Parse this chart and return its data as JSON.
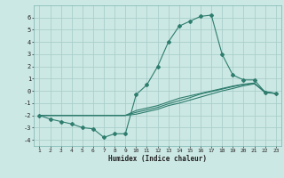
{
  "xlabel": "Humidex (Indice chaleur)",
  "bg_color": "#cce8e4",
  "grid_color": "#aacfcb",
  "line_color": "#2e7d6e",
  "x_values": [
    1,
    2,
    3,
    4,
    5,
    6,
    7,
    8,
    9,
    10,
    11,
    12,
    13,
    14,
    15,
    16,
    17,
    18,
    19,
    20,
    21,
    22,
    23
  ],
  "line1": [
    -2.0,
    -2.3,
    -2.5,
    -2.7,
    -3.0,
    -3.1,
    -3.8,
    -3.5,
    -3.5,
    -0.3,
    0.5,
    2.0,
    4.0,
    5.3,
    5.7,
    6.1,
    6.2,
    3.0,
    1.3,
    0.9,
    0.9,
    -0.1,
    -0.2
  ],
  "line2": [
    -2.0,
    -2.0,
    -2.0,
    -2.0,
    -2.0,
    -2.0,
    -2.0,
    -2.0,
    -2.0,
    -1.6,
    -1.4,
    -1.2,
    -0.9,
    -0.6,
    -0.4,
    -0.2,
    0.0,
    0.2,
    0.4,
    0.55,
    0.65,
    -0.15,
    -0.2
  ],
  "line3": [
    -2.0,
    -2.0,
    -2.0,
    -2.0,
    -2.0,
    -2.0,
    -2.0,
    -2.0,
    -2.0,
    -1.75,
    -1.55,
    -1.35,
    -1.05,
    -0.8,
    -0.55,
    -0.25,
    -0.05,
    0.15,
    0.35,
    0.52,
    0.62,
    -0.1,
    -0.2
  ],
  "line4": [
    -2.0,
    -2.0,
    -2.0,
    -2.0,
    -2.0,
    -2.0,
    -2.0,
    -2.0,
    -2.0,
    -1.9,
    -1.7,
    -1.5,
    -1.2,
    -1.0,
    -0.75,
    -0.5,
    -0.25,
    0.0,
    0.2,
    0.42,
    0.58,
    -0.05,
    -0.2
  ],
  "ylim": [
    -4.5,
    7.0
  ],
  "yticks": [
    -4,
    -3,
    -2,
    -1,
    0,
    1,
    2,
    3,
    4,
    5,
    6
  ]
}
